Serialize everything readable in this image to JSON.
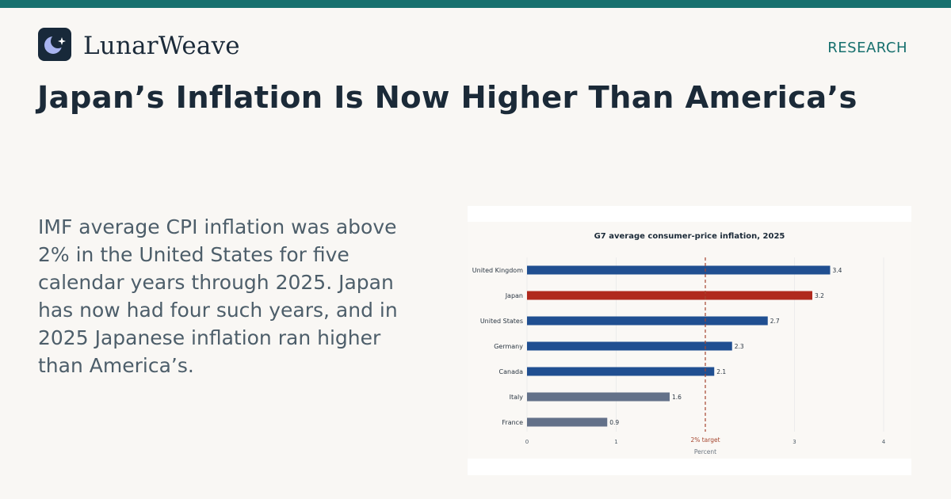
{
  "brand": {
    "name": "LunarWeave",
    "logo_icon": "crescent-moon-star-icon",
    "logo_bg": "#18293a",
    "logo_moon": "#a8b4f0"
  },
  "section_tag": "RESEARCH",
  "headline": "Japan’s Inflation Is Now Higher Than America’s",
  "summary": "IMF average CPI inflation was above 2% in the United States for five calendar years through 2025. Japan has now had four such years, and in 2025 Japanese inflation ran higher than America’s.",
  "colors": {
    "accent": "#17706e",
    "highlight": "#b02a1e",
    "default_bar": "#204f91",
    "below_target_bar": "#637189",
    "reference_line": "#a5452e"
  },
  "chart_data": {
    "type": "bar",
    "orientation": "horizontal",
    "title": "G7 average consumer-price inflation, 2025",
    "xlabel": "Percent",
    "ylabel": "",
    "categories": [
      "United Kingdom",
      "Japan",
      "United States",
      "Germany",
      "Canada",
      "Italy",
      "France"
    ],
    "values": [
      3.4,
      3.2,
      2.7,
      2.3,
      2.1,
      1.6,
      0.9
    ],
    "bar_colors": [
      "#204f91",
      "#b02a1e",
      "#204f91",
      "#204f91",
      "#204f91",
      "#637189",
      "#637189"
    ],
    "xlim": [
      0,
      4
    ],
    "xticks": [
      0,
      1,
      3,
      4
    ],
    "grid": true,
    "reference_line": {
      "value": 2,
      "label": "2% target",
      "style": "dashed"
    }
  }
}
